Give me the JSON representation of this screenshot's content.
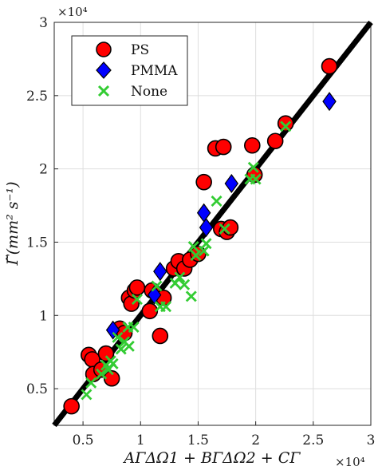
{
  "chart_data": {
    "type": "scatter",
    "xlabel": "AΓΔΩ1 + BΓΔΩ2 + CΓ",
    "ylabel": "Γ̃(mm² s⁻¹)",
    "x_exponent": "×10⁴",
    "y_exponent": "×10⁴",
    "xlim": [
      0.25,
      3.0
    ],
    "ylim": [
      0.25,
      3.0
    ],
    "x_ticks": [
      "0.5",
      "1",
      "1.5",
      "2",
      "2.5",
      "3"
    ],
    "y_ticks": [
      "0.5",
      "1",
      "1.5",
      "2",
      "2.5",
      "3"
    ],
    "x_tick_values": [
      0.5,
      1,
      1.5,
      2,
      2.5,
      3
    ],
    "y_tick_values": [
      0.5,
      1,
      1.5,
      2,
      2.5,
      3
    ],
    "grid": true,
    "legend_position": "top-left",
    "fit_line": {
      "from": [
        0.25,
        0.25
      ],
      "to": [
        3.0,
        3.0
      ],
      "color": "#000000"
    },
    "series": [
      {
        "name": "PS",
        "marker": "circle",
        "color": "#ff0000",
        "points": [
          [
            0.4,
            0.38
          ],
          [
            0.55,
            0.73
          ],
          [
            0.58,
            0.7
          ],
          [
            0.59,
            0.6
          ],
          [
            0.66,
            0.63
          ],
          [
            0.7,
            0.74
          ],
          [
            0.75,
            0.57
          ],
          [
            0.82,
            0.91
          ],
          [
            0.86,
            0.88
          ],
          [
            0.9,
            1.12
          ],
          [
            0.92,
            1.08
          ],
          [
            0.95,
            1.17
          ],
          [
            0.97,
            1.19
          ],
          [
            1.08,
            1.03
          ],
          [
            1.1,
            1.17
          ],
          [
            1.17,
            0.86
          ],
          [
            1.2,
            1.12
          ],
          [
            1.29,
            1.32
          ],
          [
            1.33,
            1.37
          ],
          [
            1.38,
            1.32
          ],
          [
            1.43,
            1.38
          ],
          [
            1.5,
            1.42
          ],
          [
            1.55,
            1.91
          ],
          [
            1.65,
            2.14
          ],
          [
            1.72,
            2.15
          ],
          [
            1.7,
            1.59
          ],
          [
            1.75,
            1.57
          ],
          [
            1.78,
            1.6
          ],
          [
            1.97,
            2.16
          ],
          [
            1.99,
            1.96
          ],
          [
            2.17,
            2.19
          ],
          [
            2.26,
            2.31
          ],
          [
            2.64,
            2.7
          ]
        ]
      },
      {
        "name": "PMMA",
        "marker": "diamond",
        "color": "#0000ff",
        "points": [
          [
            0.76,
            0.9
          ],
          [
            1.12,
            1.14
          ],
          [
            1.17,
            1.3
          ],
          [
            1.55,
            1.7
          ],
          [
            1.57,
            1.6
          ],
          [
            1.79,
            1.9
          ],
          [
            2.64,
            2.46
          ]
        ]
      },
      {
        "name": "None",
        "marker": "x",
        "color": "#33cc33",
        "points": [
          [
            0.53,
            0.46
          ],
          [
            0.57,
            0.54
          ],
          [
            0.66,
            0.6
          ],
          [
            0.7,
            0.66
          ],
          [
            0.72,
            0.63
          ],
          [
            0.74,
            0.69
          ],
          [
            0.76,
            0.67
          ],
          [
            0.8,
            0.85
          ],
          [
            0.83,
            0.77
          ],
          [
            0.86,
            0.82
          ],
          [
            0.89,
            0.92
          ],
          [
            0.9,
            0.79
          ],
          [
            0.94,
            0.92
          ],
          [
            0.97,
            1.11
          ],
          [
            1.14,
            1.2
          ],
          [
            1.17,
            1.06
          ],
          [
            1.22,
            1.06
          ],
          [
            1.3,
            1.22
          ],
          [
            1.34,
            1.26
          ],
          [
            1.38,
            1.21
          ],
          [
            1.44,
            1.13
          ],
          [
            1.46,
            1.47
          ],
          [
            1.48,
            1.41
          ],
          [
            1.55,
            1.44
          ],
          [
            1.57,
            1.49
          ],
          [
            1.66,
            1.78
          ],
          [
            1.73,
            1.59
          ],
          [
            1.95,
            1.93
          ],
          [
            1.98,
            2.01
          ],
          [
            2.0,
            1.93
          ],
          [
            2.26,
            2.29
          ]
        ]
      }
    ]
  }
}
